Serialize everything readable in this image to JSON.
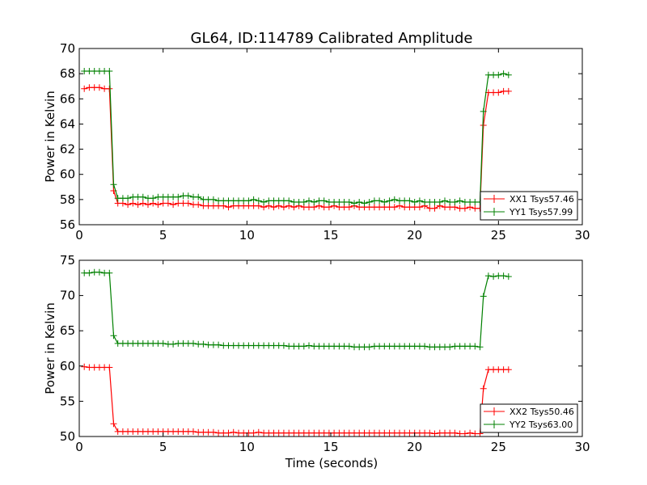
{
  "title": "GL64, ID:114789 Calibrated Amplitude",
  "colors": {
    "xx": "#ff0000",
    "yy": "#008000",
    "axis": "#000000",
    "background": "#ffffff"
  },
  "chart_data": [
    {
      "type": "line",
      "title": "GL64, ID:114789 Calibrated Amplitude",
      "xlabel": "",
      "ylabel": "Power in Kelvin",
      "xlim": [
        0,
        30
      ],
      "ylim": [
        56,
        70
      ],
      "xticks": [
        "0",
        "5",
        "10",
        "15",
        "20",
        "25",
        "30"
      ],
      "yticks": [
        "56",
        "58",
        "60",
        "62",
        "64",
        "66",
        "68",
        "70"
      ],
      "grid": false,
      "legend_position": "lower-right",
      "marker": "plus",
      "series": [
        {
          "name": "XX1 Tsys57.46",
          "color": "#ff0000",
          "x": [
            0.3,
            0.6,
            0.9,
            1.2,
            1.5,
            1.8,
            2.05,
            2.3,
            2.6,
            2.9,
            3.2,
            3.5,
            3.8,
            4.1,
            4.4,
            4.7,
            5.0,
            5.3,
            5.6,
            5.9,
            6.2,
            6.5,
            6.8,
            7.1,
            7.4,
            7.7,
            8.0,
            8.3,
            8.6,
            8.9,
            9.2,
            9.5,
            9.8,
            10.1,
            10.4,
            10.7,
            11.0,
            11.3,
            11.6,
            11.9,
            12.2,
            12.5,
            12.8,
            13.1,
            13.4,
            13.7,
            14.0,
            14.3,
            14.6,
            14.9,
            15.2,
            15.5,
            15.8,
            16.1,
            16.4,
            16.7,
            17.0,
            17.3,
            17.6,
            17.9,
            18.2,
            18.5,
            18.8,
            19.1,
            19.4,
            19.7,
            20.0,
            20.3,
            20.6,
            20.9,
            21.2,
            21.5,
            21.8,
            22.1,
            22.4,
            22.7,
            23.0,
            23.3,
            23.6,
            23.9,
            24.1,
            24.4,
            24.7,
            25.0,
            25.3,
            25.6
          ],
          "y": [
            66.8,
            66.9,
            66.9,
            66.9,
            66.8,
            66.8,
            58.7,
            57.7,
            57.7,
            57.6,
            57.7,
            57.6,
            57.7,
            57.6,
            57.7,
            57.6,
            57.7,
            57.7,
            57.6,
            57.7,
            57.7,
            57.7,
            57.6,
            57.6,
            57.5,
            57.5,
            57.5,
            57.5,
            57.5,
            57.4,
            57.5,
            57.5,
            57.5,
            57.5,
            57.5,
            57.5,
            57.4,
            57.5,
            57.4,
            57.5,
            57.4,
            57.5,
            57.4,
            57.5,
            57.4,
            57.4,
            57.4,
            57.5,
            57.4,
            57.4,
            57.5,
            57.4,
            57.4,
            57.4,
            57.5,
            57.4,
            57.4,
            57.4,
            57.4,
            57.4,
            57.4,
            57.4,
            57.4,
            57.5,
            57.4,
            57.4,
            57.4,
            57.4,
            57.5,
            57.3,
            57.3,
            57.5,
            57.4,
            57.4,
            57.4,
            57.3,
            57.3,
            57.4,
            57.3,
            57.3,
            63.9,
            66.5,
            66.5,
            66.5,
            66.6,
            66.6
          ]
        },
        {
          "name": "YY1 Tsys57.99",
          "color": "#008000",
          "x": [
            0.3,
            0.6,
            0.9,
            1.2,
            1.5,
            1.8,
            2.05,
            2.3,
            2.6,
            2.9,
            3.2,
            3.5,
            3.8,
            4.1,
            4.4,
            4.7,
            5.0,
            5.3,
            5.6,
            5.9,
            6.2,
            6.5,
            6.8,
            7.1,
            7.4,
            7.7,
            8.0,
            8.3,
            8.6,
            8.9,
            9.2,
            9.5,
            9.8,
            10.1,
            10.4,
            10.7,
            11.0,
            11.3,
            11.6,
            11.9,
            12.2,
            12.5,
            12.8,
            13.1,
            13.4,
            13.7,
            14.0,
            14.3,
            14.6,
            14.9,
            15.2,
            15.5,
            15.8,
            16.1,
            16.4,
            16.7,
            17.0,
            17.3,
            17.6,
            17.9,
            18.2,
            18.5,
            18.8,
            19.1,
            19.4,
            19.7,
            20.0,
            20.3,
            20.6,
            20.9,
            21.2,
            21.5,
            21.8,
            22.1,
            22.4,
            22.7,
            23.0,
            23.3,
            23.6,
            23.9,
            24.1,
            24.4,
            24.7,
            25.0,
            25.3,
            25.6
          ],
          "y": [
            68.2,
            68.2,
            68.2,
            68.2,
            68.2,
            68.2,
            59.2,
            58.1,
            58.1,
            58.1,
            58.2,
            58.2,
            58.2,
            58.1,
            58.1,
            58.2,
            58.2,
            58.2,
            58.2,
            58.2,
            58.3,
            58.3,
            58.2,
            58.2,
            58.0,
            58.0,
            58.0,
            57.9,
            57.9,
            57.9,
            57.9,
            57.9,
            57.9,
            57.9,
            58.0,
            57.9,
            57.8,
            57.9,
            57.9,
            57.9,
            57.9,
            57.9,
            57.8,
            57.8,
            57.8,
            57.9,
            57.8,
            57.9,
            57.9,
            57.8,
            57.8,
            57.8,
            57.8,
            57.8,
            57.7,
            57.8,
            57.7,
            57.8,
            57.9,
            57.9,
            57.8,
            57.9,
            58.0,
            57.9,
            57.9,
            57.9,
            57.8,
            57.9,
            57.8,
            57.8,
            57.8,
            57.8,
            57.9,
            57.8,
            57.8,
            57.9,
            57.8,
            57.8,
            57.8,
            57.8,
            65.0,
            67.9,
            67.9,
            67.9,
            68.0,
            67.9
          ]
        }
      ]
    },
    {
      "type": "line",
      "title": "",
      "xlabel": "Time (seconds)",
      "ylabel": "Power in Kelvin",
      "xlim": [
        0,
        30
      ],
      "ylim": [
        50,
        75
      ],
      "xticks": [
        "0",
        "5",
        "10",
        "15",
        "20",
        "25",
        "30"
      ],
      "yticks": [
        "50",
        "55",
        "60",
        "65",
        "70",
        "75"
      ],
      "grid": false,
      "legend_position": "lower-right",
      "marker": "plus",
      "series": [
        {
          "name": "XX2 Tsys50.46",
          "color": "#ff0000",
          "x": [
            0.3,
            0.6,
            0.9,
            1.2,
            1.5,
            1.8,
            2.05,
            2.3,
            2.6,
            2.9,
            3.2,
            3.5,
            3.8,
            4.1,
            4.4,
            4.7,
            5.0,
            5.3,
            5.6,
            5.9,
            6.2,
            6.5,
            6.8,
            7.1,
            7.4,
            7.7,
            8.0,
            8.3,
            8.6,
            8.9,
            9.2,
            9.5,
            9.8,
            10.1,
            10.4,
            10.7,
            11.0,
            11.3,
            11.6,
            11.9,
            12.2,
            12.5,
            12.8,
            13.1,
            13.4,
            13.7,
            14.0,
            14.3,
            14.6,
            14.9,
            15.2,
            15.5,
            15.8,
            16.1,
            16.4,
            16.7,
            17.0,
            17.3,
            17.6,
            17.9,
            18.2,
            18.5,
            18.8,
            19.1,
            19.4,
            19.7,
            20.0,
            20.3,
            20.6,
            20.9,
            21.2,
            21.5,
            21.8,
            22.1,
            22.4,
            22.7,
            23.0,
            23.3,
            23.6,
            23.9,
            24.1,
            24.4,
            24.7,
            25.0,
            25.3,
            25.6
          ],
          "y": [
            59.9,
            59.8,
            59.8,
            59.8,
            59.8,
            59.8,
            51.8,
            50.7,
            50.7,
            50.7,
            50.7,
            50.7,
            50.7,
            50.7,
            50.7,
            50.7,
            50.7,
            50.7,
            50.7,
            50.7,
            50.7,
            50.7,
            50.7,
            50.6,
            50.6,
            50.6,
            50.6,
            50.5,
            50.5,
            50.5,
            50.6,
            50.5,
            50.5,
            50.5,
            50.5,
            50.6,
            50.5,
            50.5,
            50.5,
            50.5,
            50.5,
            50.5,
            50.5,
            50.5,
            50.5,
            50.5,
            50.5,
            50.5,
            50.5,
            50.5,
            50.5,
            50.5,
            50.5,
            50.5,
            50.5,
            50.5,
            50.5,
            50.5,
            50.5,
            50.5,
            50.5,
            50.5,
            50.5,
            50.5,
            50.5,
            50.5,
            50.5,
            50.5,
            50.5,
            50.5,
            50.4,
            50.5,
            50.5,
            50.5,
            50.5,
            50.4,
            50.4,
            50.5,
            50.4,
            50.4,
            56.8,
            59.5,
            59.5,
            59.5,
            59.5,
            59.5
          ]
        },
        {
          "name": "YY2 Tsys63.00",
          "color": "#008000",
          "x": [
            0.3,
            0.6,
            0.9,
            1.2,
            1.5,
            1.8,
            2.05,
            2.3,
            2.6,
            2.9,
            3.2,
            3.5,
            3.8,
            4.1,
            4.4,
            4.7,
            5.0,
            5.3,
            5.6,
            5.9,
            6.2,
            6.5,
            6.8,
            7.1,
            7.4,
            7.7,
            8.0,
            8.3,
            8.6,
            8.9,
            9.2,
            9.5,
            9.8,
            10.1,
            10.4,
            10.7,
            11.0,
            11.3,
            11.6,
            11.9,
            12.2,
            12.5,
            12.8,
            13.1,
            13.4,
            13.7,
            14.0,
            14.3,
            14.6,
            14.9,
            15.2,
            15.5,
            15.8,
            16.1,
            16.4,
            16.7,
            17.0,
            17.3,
            17.6,
            17.9,
            18.2,
            18.5,
            18.8,
            19.1,
            19.4,
            19.7,
            20.0,
            20.3,
            20.6,
            20.9,
            21.2,
            21.5,
            21.8,
            22.1,
            22.4,
            22.7,
            23.0,
            23.3,
            23.6,
            23.9,
            24.1,
            24.4,
            24.7,
            25.0,
            25.3,
            25.6
          ],
          "y": [
            73.2,
            73.2,
            73.3,
            73.3,
            73.2,
            73.2,
            64.3,
            63.2,
            63.2,
            63.2,
            63.2,
            63.2,
            63.2,
            63.2,
            63.2,
            63.2,
            63.2,
            63.1,
            63.1,
            63.2,
            63.2,
            63.2,
            63.2,
            63.1,
            63.1,
            63.0,
            63.0,
            63.0,
            62.9,
            62.9,
            62.9,
            62.9,
            62.9,
            62.9,
            62.9,
            62.9,
            62.9,
            62.9,
            62.9,
            62.9,
            62.9,
            62.8,
            62.8,
            62.8,
            62.8,
            62.9,
            62.8,
            62.8,
            62.8,
            62.8,
            62.8,
            62.8,
            62.8,
            62.8,
            62.7,
            62.7,
            62.7,
            62.7,
            62.8,
            62.8,
            62.8,
            62.8,
            62.8,
            62.8,
            62.8,
            62.8,
            62.8,
            62.8,
            62.8,
            62.7,
            62.7,
            62.7,
            62.7,
            62.7,
            62.8,
            62.8,
            62.8,
            62.8,
            62.8,
            62.7,
            69.9,
            72.8,
            72.7,
            72.8,
            72.8,
            72.7
          ]
        }
      ]
    }
  ]
}
